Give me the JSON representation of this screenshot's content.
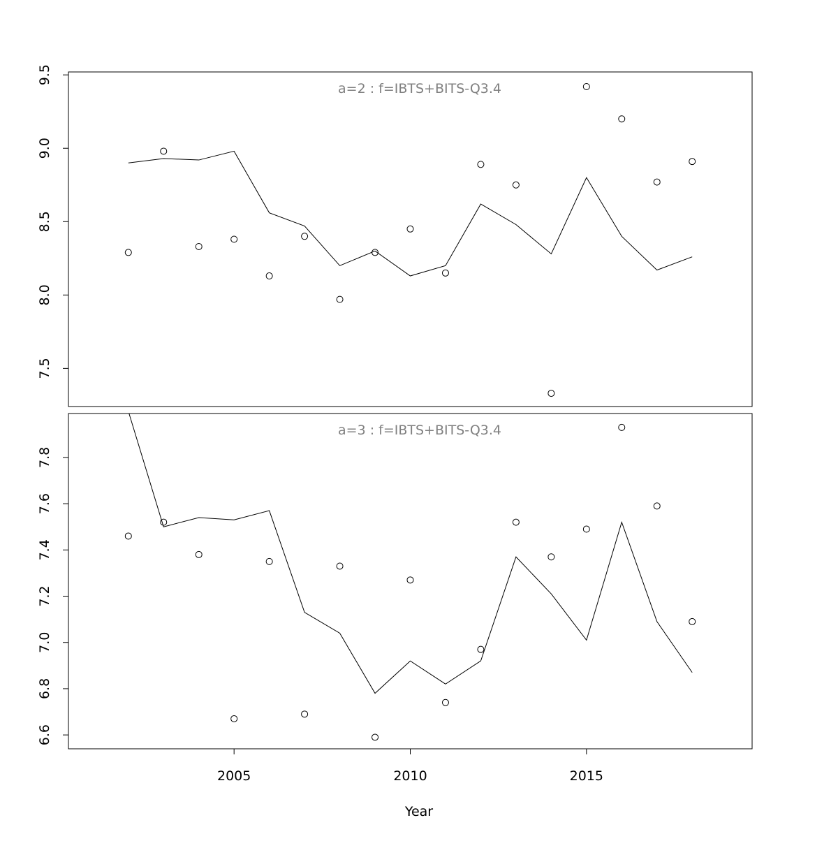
{
  "chart_data": {
    "type": "line",
    "xlabel": "Year",
    "x_ticks": [
      2005,
      2010,
      2015
    ],
    "xlim": [
      2000.3,
      2019.7
    ],
    "panels": [
      {
        "title": "a=2  :  f=IBTS+BITS-Q3.4",
        "ylim": [
          7.24,
          9.52
        ],
        "y_ticks": [
          7.5,
          8.0,
          8.5,
          9.0,
          9.5
        ],
        "y_tick_labels": [
          "7.5",
          "8.0",
          "8.5",
          "9.0",
          "9.5"
        ],
        "series": [
          {
            "type": "scatter",
            "x": [
              2002,
              2003,
              2004,
              2005,
              2006,
              2007,
              2008,
              2009,
              2010,
              2011,
              2012,
              2013,
              2014,
              2015,
              2016,
              2017,
              2018
            ],
            "values": [
              8.29,
              8.98,
              8.33,
              8.38,
              8.13,
              8.4,
              7.97,
              8.29,
              8.45,
              8.15,
              8.89,
              8.75,
              7.33,
              9.42,
              9.2,
              8.77,
              8.91
            ]
          },
          {
            "type": "line",
            "x": [
              2002,
              2003,
              2004,
              2005,
              2006,
              2007,
              2008,
              2009,
              2010,
              2011,
              2012,
              2013,
              2014,
              2015,
              2016,
              2017,
              2018
            ],
            "values": [
              8.9,
              8.93,
              8.92,
              8.98,
              8.56,
              8.47,
              8.2,
              8.3,
              8.13,
              8.2,
              8.62,
              8.48,
              8.28,
              8.8,
              8.4,
              8.17,
              8.26
            ]
          }
        ]
      },
      {
        "title": "a=3  :  f=IBTS+BITS-Q3.4",
        "ylim": [
          6.54,
          7.99
        ],
        "y_ticks": [
          6.6,
          6.8,
          7.0,
          7.2,
          7.4,
          7.6,
          7.8
        ],
        "y_tick_labels": [
          "6.6",
          "6.8",
          "7.0",
          "7.2",
          "7.4",
          "7.6",
          "7.8"
        ],
        "series": [
          {
            "type": "scatter",
            "x": [
              2002,
              2003,
              2004,
              2005,
              2006,
              2007,
              2008,
              2009,
              2010,
              2011,
              2012,
              2013,
              2014,
              2015,
              2016,
              2017,
              2018
            ],
            "values": [
              7.46,
              7.52,
              7.38,
              6.67,
              7.35,
              6.69,
              7.33,
              6.59,
              7.27,
              6.74,
              6.97,
              7.52,
              7.37,
              7.49,
              7.93,
              7.59,
              7.09
            ]
          },
          {
            "type": "line",
            "x": [
              2002,
              2003,
              2004,
              2005,
              2006,
              2007,
              2008,
              2009,
              2010,
              2011,
              2012,
              2013,
              2014,
              2015,
              2016,
              2017,
              2018
            ],
            "values": [
              8.0,
              7.5,
              7.54,
              7.53,
              7.57,
              7.13,
              7.04,
              6.78,
              6.92,
              6.82,
              6.92,
              7.37,
              7.21,
              7.01,
              7.52,
              7.09,
              6.87
            ]
          }
        ]
      }
    ]
  }
}
